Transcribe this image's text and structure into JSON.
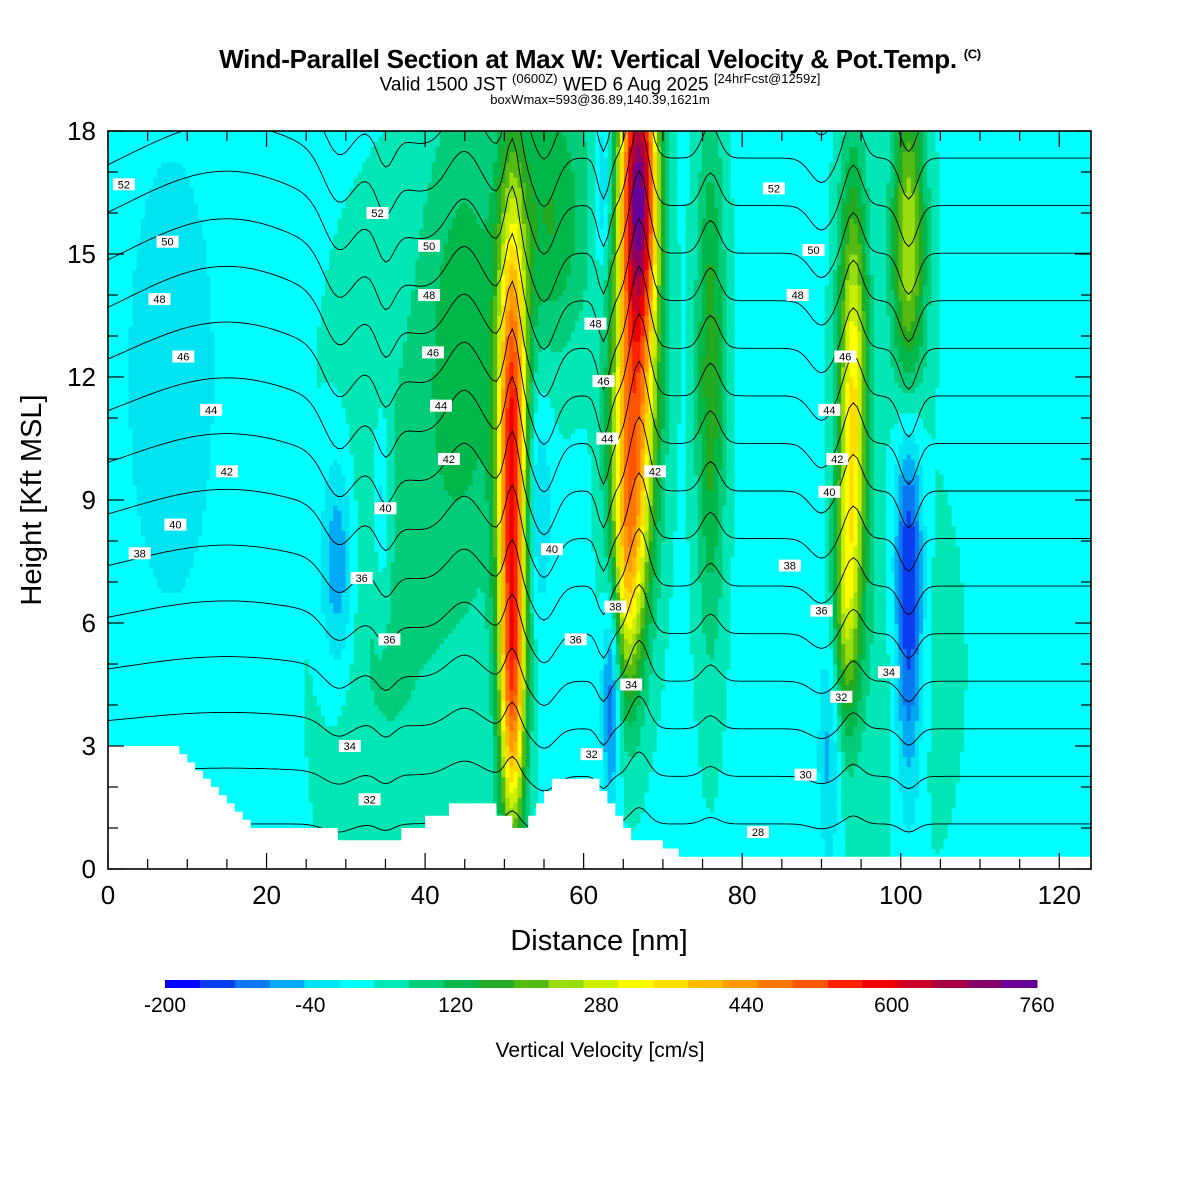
{
  "title": {
    "main": "Wind-Parallel Section at Max W: Vertical Velocity & Pot.Temp.",
    "main_suffix": "(C)",
    "valid_a": "Valid 1500 JST",
    "valid_b": "(0600Z)",
    "valid_c": "WED 6 Aug 2025",
    "valid_d": "[24hrFcst@1259z]",
    "box": "boxWmax=593@36.89,140.39,1621m"
  },
  "chart_data": {
    "type": "contour-section",
    "xlabel": "Distance [nm]",
    "ylabel": "Height [Kft MSL]",
    "xlim": [
      0,
      124
    ],
    "ylim": [
      0,
      18
    ],
    "xticks": [
      "0",
      "20",
      "40",
      "60",
      "80",
      "100",
      "120"
    ],
    "xtick_values": [
      0,
      20,
      40,
      60,
      80,
      100,
      120
    ],
    "yticks": [
      "0",
      "3",
      "6",
      "9",
      "12",
      "15",
      "18"
    ],
    "ytick_values": [
      0,
      3,
      6,
      9,
      12,
      15,
      18
    ],
    "colorbar": {
      "title": "Vertical Velocity [cm/s]",
      "labels": [
        "-200",
        "-40",
        "120",
        "280",
        "440",
        "600",
        "760"
      ],
      "min": -200,
      "max": 760,
      "step": 40,
      "colors": [
        "#0000ff",
        "#0a3cf0",
        "#0a78f0",
        "#00aaf5",
        "#00e4f2",
        "#00ffff",
        "#00e6b4",
        "#00cc7a",
        "#00b84a",
        "#22aa22",
        "#55bb11",
        "#99dd11",
        "#ccee00",
        "#ffff00",
        "#ffdd00",
        "#ffbb00",
        "#ff9900",
        "#ff7700",
        "#ff5500",
        "#ff2200",
        "#ee0000",
        "#cc0022",
        "#aa0044",
        "#880066",
        "#660099"
      ]
    },
    "background_w": 30,
    "w_cells": [
      {
        "x": 51,
        "z": 10,
        "sx": 1.3,
        "sz": 4.2,
        "w": 560
      },
      {
        "x": 51,
        "z": 4,
        "sx": 1.1,
        "sz": 2.5,
        "w": 300
      },
      {
        "x": 67,
        "z": 17,
        "sx": 1.6,
        "sz": 2.5,
        "w": 600
      },
      {
        "x": 66.5,
        "z": 12,
        "sx": 2.0,
        "sz": 3.5,
        "w": 420
      },
      {
        "x": 65.5,
        "z": 7.5,
        "sx": 1.5,
        "sz": 2.5,
        "w": 260
      },
      {
        "x": 94,
        "z": 11.5,
        "sx": 1.3,
        "sz": 3.8,
        "w": 330
      },
      {
        "x": 93,
        "z": 6.5,
        "sx": 1.1,
        "sz": 2.2,
        "w": 170
      },
      {
        "x": 101,
        "z": 15,
        "sx": 1.5,
        "sz": 3.0,
        "w": 260
      },
      {
        "x": 76,
        "z": 12,
        "sx": 1.3,
        "sz": 4.5,
        "w": 160
      },
      {
        "x": 56,
        "z": 16,
        "sx": 3.5,
        "sz": 2.5,
        "w": 130
      },
      {
        "x": 45,
        "z": 13,
        "sx": 4.0,
        "sz": 4.5,
        "w": 110
      },
      {
        "x": 35,
        "z": 7,
        "sx": 6.0,
        "sz": 5.5,
        "w": 60
      },
      {
        "x": 100,
        "z": 5,
        "sx": 5.0,
        "sz": 3.5,
        "w": 40
      },
      {
        "x": 101,
        "z": 7,
        "sx": 1.3,
        "sz": 3.5,
        "w": -230
      },
      {
        "x": 63.5,
        "z": 4.5,
        "sx": 0.8,
        "sz": 2.0,
        "w": -170
      },
      {
        "x": 62.5,
        "z": 16.5,
        "sx": 0.8,
        "sz": 1.5,
        "w": -110
      },
      {
        "x": 29,
        "z": 7.5,
        "sx": 1.6,
        "sz": 2.0,
        "w": -130
      },
      {
        "x": 34.5,
        "z": 9,
        "sx": 0.8,
        "sz": 1.7,
        "w": -90
      },
      {
        "x": 54,
        "z": 9,
        "sx": 1.3,
        "sz": 2.0,
        "w": -90
      },
      {
        "x": 91,
        "z": 3,
        "sx": 1.0,
        "sz": 2.0,
        "w": -90
      },
      {
        "x": 8,
        "z": 12,
        "sx": 7.0,
        "sz": 7.0,
        "w": -40
      },
      {
        "x": 118,
        "z": 15,
        "sx": 4.0,
        "sz": 5.0,
        "w": -20
      }
    ],
    "theta_levels": [
      28,
      30,
      32,
      34,
      36,
      38,
      40,
      42,
      44,
      46,
      48,
      50,
      52,
      54
    ],
    "terrain_kft": [
      [
        0,
        3
      ],
      [
        9,
        3
      ],
      [
        9,
        2.8
      ],
      [
        10,
        2.8
      ],
      [
        10,
        2.6
      ],
      [
        11,
        2.6
      ],
      [
        11,
        2.4
      ],
      [
        12,
        2.4
      ],
      [
        12,
        2.2
      ],
      [
        13,
        2.2
      ],
      [
        13,
        2
      ],
      [
        14,
        2
      ],
      [
        14,
        1.8
      ],
      [
        15,
        1.8
      ],
      [
        15,
        1.6
      ],
      [
        16,
        1.6
      ],
      [
        16,
        1.4
      ],
      [
        17,
        1.4
      ],
      [
        17,
        1.2
      ],
      [
        18,
        1.2
      ],
      [
        18,
        1
      ],
      [
        29,
        1
      ],
      [
        29,
        0.7
      ],
      [
        37,
        0.7
      ],
      [
        37,
        1
      ],
      [
        40,
        1
      ],
      [
        40,
        1.3
      ],
      [
        43,
        1.3
      ],
      [
        43,
        1.6
      ],
      [
        49,
        1.6
      ],
      [
        49,
        1.3
      ],
      [
        51,
        1.3
      ],
      [
        51,
        1
      ],
      [
        53,
        1
      ],
      [
        53,
        1.3
      ],
      [
        54,
        1.3
      ],
      [
        54,
        1.6
      ],
      [
        55,
        1.6
      ],
      [
        55,
        1.9
      ],
      [
        56,
        1.9
      ],
      [
        56,
        2.2
      ],
      [
        62,
        2.2
      ],
      [
        62,
        1.9
      ],
      [
        63,
        1.9
      ],
      [
        63,
        1.6
      ],
      [
        64,
        1.6
      ],
      [
        64,
        1.3
      ],
      [
        65,
        1.3
      ],
      [
        65,
        1
      ],
      [
        66,
        1
      ],
      [
        66,
        0.7
      ],
      [
        70,
        0.7
      ],
      [
        70,
        0.5
      ],
      [
        72,
        0.5
      ],
      [
        72,
        0.3
      ],
      [
        124,
        0.3
      ]
    ],
    "theta_labels": [
      {
        "x": 2,
        "z": 16.7,
        "text": "52"
      },
      {
        "x": 34,
        "z": 16.0,
        "text": "52"
      },
      {
        "x": 84,
        "z": 16.6,
        "text": "52"
      },
      {
        "x": 7.5,
        "z": 15.3,
        "text": "50"
      },
      {
        "x": 40.5,
        "z": 15.2,
        "text": "50"
      },
      {
        "x": 89,
        "z": 15.1,
        "text": "50"
      },
      {
        "x": 6.5,
        "z": 13.9,
        "text": "48"
      },
      {
        "x": 40.5,
        "z": 14.0,
        "text": "48"
      },
      {
        "x": 61.5,
        "z": 13.3,
        "text": "48"
      },
      {
        "x": 87,
        "z": 14.0,
        "text": "48"
      },
      {
        "x": 9.5,
        "z": 12.5,
        "text": "46"
      },
      {
        "x": 41,
        "z": 12.6,
        "text": "46"
      },
      {
        "x": 62.5,
        "z": 11.9,
        "text": "46"
      },
      {
        "x": 93,
        "z": 12.5,
        "text": "46"
      },
      {
        "x": 13,
        "z": 11.2,
        "text": "44"
      },
      {
        "x": 42,
        "z": 11.3,
        "text": "44"
      },
      {
        "x": 63,
        "z": 10.5,
        "text": "44"
      },
      {
        "x": 91,
        "z": 11.2,
        "text": "44"
      },
      {
        "x": 15,
        "z": 9.7,
        "text": "42"
      },
      {
        "x": 43,
        "z": 10.0,
        "text": "42"
      },
      {
        "x": 69,
        "z": 9.7,
        "text": "42"
      },
      {
        "x": 92,
        "z": 10.0,
        "text": "42"
      },
      {
        "x": 8.5,
        "z": 8.4,
        "text": "40"
      },
      {
        "x": 35,
        "z": 8.8,
        "text": "40"
      },
      {
        "x": 56,
        "z": 7.8,
        "text": "40"
      },
      {
        "x": 91,
        "z": 9.2,
        "text": "40"
      },
      {
        "x": 4,
        "z": 7.7,
        "text": "38"
      },
      {
        "x": 64,
        "z": 6.4,
        "text": "38"
      },
      {
        "x": 86,
        "z": 7.4,
        "text": "38"
      },
      {
        "x": 32,
        "z": 7.1,
        "text": "36"
      },
      {
        "x": 35.5,
        "z": 5.6,
        "text": "36"
      },
      {
        "x": 59,
        "z": 5.6,
        "text": "36"
      },
      {
        "x": 90,
        "z": 6.3,
        "text": "36"
      },
      {
        "x": 30.5,
        "z": 3.0,
        "text": "34"
      },
      {
        "x": 66,
        "z": 4.5,
        "text": "34"
      },
      {
        "x": 98.5,
        "z": 4.8,
        "text": "34"
      },
      {
        "x": 33,
        "z": 1.7,
        "text": "32"
      },
      {
        "x": 61,
        "z": 2.8,
        "text": "32"
      },
      {
        "x": 92.5,
        "z": 4.2,
        "text": "32"
      },
      {
        "x": 88,
        "z": 2.3,
        "text": "30"
      },
      {
        "x": 82,
        "z": 0.9,
        "text": "28"
      }
    ]
  }
}
